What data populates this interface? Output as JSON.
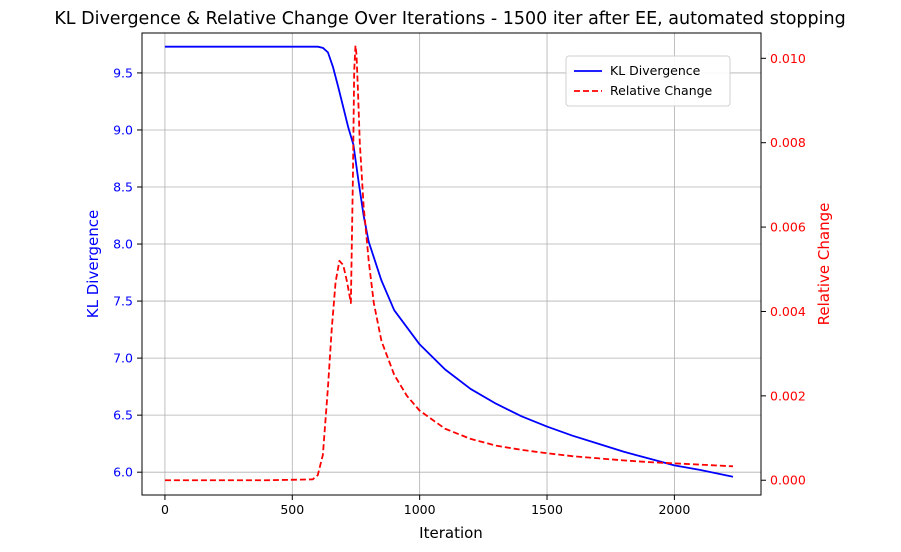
{
  "chart_data": {
    "type": "line",
    "title": "KL Divergence & Relative Change Over Iterations - 1500 iter after EE, automated stopping",
    "xlabel": "Iteration",
    "ylabel_left": "KL Divergence",
    "ylabel_right": "Relative Change",
    "xlim": [
      -90,
      2340
    ],
    "ylim_left": [
      5.8,
      9.85
    ],
    "ylim_right": [
      -0.00035,
      0.0106
    ],
    "xticks": [
      0,
      500,
      1000,
      1500,
      2000
    ],
    "yticks_left": [
      6.0,
      6.5,
      7.0,
      7.5,
      8.0,
      8.5,
      9.0,
      9.5
    ],
    "yticks_right": [
      0.0,
      0.002,
      0.004,
      0.006,
      0.008,
      0.01
    ],
    "grid": true,
    "legend_position": "top-right",
    "colors": {
      "left_axis": "#0000ff",
      "right_axis": "#ff0000",
      "grid": "#b0b0b0"
    },
    "series": [
      {
        "name": "KL Divergence",
        "axis": "left",
        "color": "#0000ff",
        "style": "solid",
        "x": [
          0,
          200,
          400,
          600,
          620,
          640,
          660,
          680,
          700,
          720,
          740,
          760,
          780,
          800,
          850,
          900,
          1000,
          1100,
          1200,
          1300,
          1400,
          1500,
          1600,
          1700,
          1800,
          1900,
          2000,
          2100,
          2230
        ],
        "y": [
          9.73,
          9.73,
          9.73,
          9.73,
          9.72,
          9.68,
          9.55,
          9.38,
          9.2,
          9.02,
          8.87,
          8.55,
          8.25,
          8.02,
          7.68,
          7.42,
          7.12,
          6.9,
          6.73,
          6.6,
          6.49,
          6.4,
          6.32,
          6.25,
          6.18,
          6.12,
          6.06,
          6.02,
          5.96
        ]
      },
      {
        "name": "Relative Change",
        "axis": "right",
        "color": "#ff0000",
        "style": "dashed",
        "x": [
          0,
          200,
          400,
          580,
          600,
          620,
          640,
          655,
          670,
          685,
          700,
          715,
          730,
          738,
          743,
          748,
          752,
          758,
          765,
          780,
          800,
          820,
          850,
          900,
          950,
          1000,
          1100,
          1200,
          1300,
          1400,
          1500,
          1600,
          1700,
          1800,
          1900,
          2000,
          2100,
          2230
        ],
        "y": [
          0,
          0,
          0,
          2e-05,
          0.00012,
          0.0006,
          0.0022,
          0.0036,
          0.0047,
          0.0052,
          0.0051,
          0.0047,
          0.0042,
          0.0072,
          0.0097,
          0.0103,
          0.0101,
          0.0092,
          0.008,
          0.0065,
          0.0052,
          0.0042,
          0.0033,
          0.0025,
          0.002,
          0.00165,
          0.00122,
          0.00098,
          0.00082,
          0.00072,
          0.00064,
          0.00057,
          0.00052,
          0.00047,
          0.00043,
          0.0004,
          0.00037,
          0.00033
        ]
      }
    ]
  }
}
